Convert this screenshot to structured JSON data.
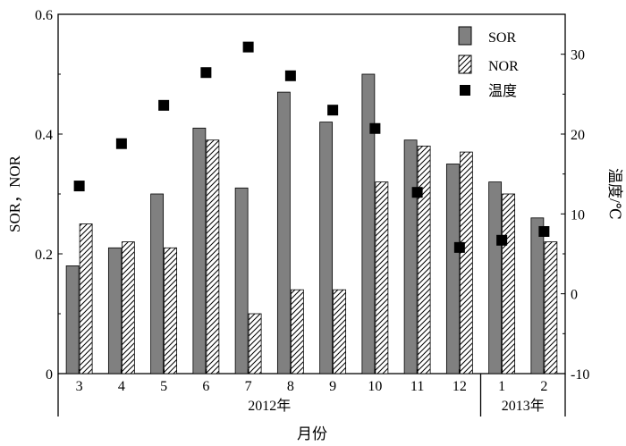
{
  "chart_data": {
    "type": "bar",
    "categories": [
      "3",
      "4",
      "5",
      "6",
      "7",
      "8",
      "9",
      "10",
      "11",
      "12",
      "1",
      "2"
    ],
    "year_groups": [
      {
        "label": "2012年",
        "from": 0,
        "to": 9
      },
      {
        "label": "2013年",
        "from": 10,
        "to": 11
      }
    ],
    "xlabel": "月份",
    "ylabel": "SOR，NOR",
    "y2label": "温度/℃",
    "ylim": [
      0,
      0.6
    ],
    "y2lim": [
      -10,
      35
    ],
    "yticks": [
      "0",
      "0.2",
      "0.4",
      "0.6"
    ],
    "y2ticks": [
      "-10",
      "0",
      "10",
      "20",
      "30"
    ],
    "series": [
      {
        "name": "SOR",
        "kind": "bar",
        "pattern": "solid-gray",
        "color": "#808080",
        "values": [
          0.18,
          0.21,
          0.3,
          0.41,
          0.31,
          0.47,
          0.42,
          0.5,
          0.39,
          0.35,
          0.32,
          0.26
        ]
      },
      {
        "name": "NOR",
        "kind": "bar",
        "pattern": "diagonal-hatch",
        "color": "#000000",
        "values": [
          0.25,
          0.22,
          0.21,
          0.39,
          0.1,
          0.14,
          0.14,
          0.32,
          0.38,
          0.37,
          0.3,
          0.22
        ]
      },
      {
        "name": "温度",
        "kind": "scatter",
        "marker": "filled-square",
        "color": "#000000",
        "axis": "right",
        "values": [
          13.5,
          18.8,
          23.6,
          27.7,
          30.9,
          27.3,
          23.0,
          20.7,
          12.7,
          5.8,
          6.7,
          7.8
        ]
      }
    ],
    "legend": {
      "position": "top-right",
      "items": [
        "SOR",
        "NOR",
        "温度"
      ]
    }
  }
}
